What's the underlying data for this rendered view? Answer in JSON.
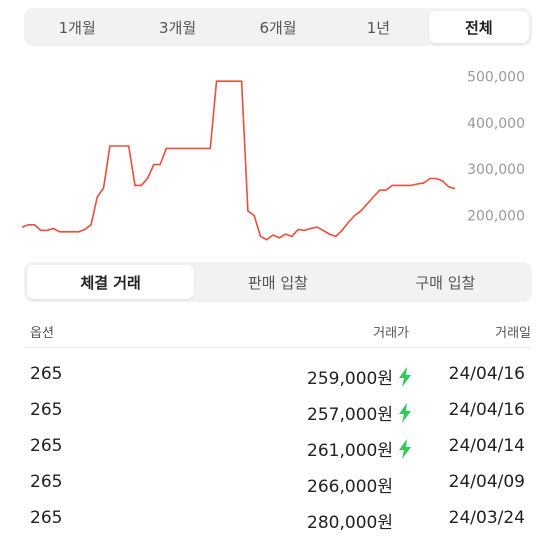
{
  "period_tabs": [
    {
      "label": "1개월"
    },
    {
      "label": "3개월"
    },
    {
      "label": "6개월"
    },
    {
      "label": "1년"
    },
    {
      "label": "전체",
      "active": true
    }
  ],
  "chart_data": {
    "type": "line",
    "y_ticks": [
      "500,000",
      "400,000",
      "300,000",
      "200,000"
    ],
    "y_tick_values": [
      500000,
      400000,
      300000,
      200000
    ],
    "ylim": [
      130000,
      540000
    ],
    "line_color": "#e8503d",
    "values": [
      175000,
      180000,
      180000,
      168000,
      168000,
      172000,
      165000,
      165000,
      165000,
      165000,
      170000,
      180000,
      240000,
      260000,
      350000,
      350000,
      350000,
      350000,
      265000,
      265000,
      280000,
      310000,
      310000,
      345000,
      345000,
      345000,
      345000,
      345000,
      345000,
      345000,
      345000,
      490000,
      490000,
      490000,
      490000,
      490000,
      210000,
      200000,
      155000,
      148000,
      158000,
      152000,
      160000,
      155000,
      170000,
      168000,
      172000,
      175000,
      168000,
      160000,
      155000,
      168000,
      185000,
      200000,
      210000,
      225000,
      240000,
      255000,
      255000,
      265000,
      265000,
      265000,
      265000,
      268000,
      270000,
      280000,
      280000,
      275000,
      262000,
      258000
    ]
  },
  "trade_tabs": [
    {
      "label": "체결 거래",
      "active": true
    },
    {
      "label": "판매 입찰"
    },
    {
      "label": "구매 입찰"
    }
  ],
  "table": {
    "headers": {
      "option": "옵션",
      "price": "거래가",
      "date": "거래일"
    },
    "rows": [
      {
        "option": "265",
        "price": "259,000원",
        "date": "24/04/16",
        "instant": true
      },
      {
        "option": "265",
        "price": "257,000원",
        "date": "24/04/16",
        "instant": true
      },
      {
        "option": "265",
        "price": "261,000원",
        "date": "24/04/14",
        "instant": true
      },
      {
        "option": "265",
        "price": "266,000원",
        "date": "24/04/09",
        "instant": false
      },
      {
        "option": "265",
        "price": "280,000원",
        "date": "24/03/24",
        "instant": false
      }
    ]
  },
  "colors": {
    "accent_line": "#e8503d",
    "instant_bolt": "#34c759"
  },
  "icons": {
    "instant": "lightning-bolt-icon"
  }
}
